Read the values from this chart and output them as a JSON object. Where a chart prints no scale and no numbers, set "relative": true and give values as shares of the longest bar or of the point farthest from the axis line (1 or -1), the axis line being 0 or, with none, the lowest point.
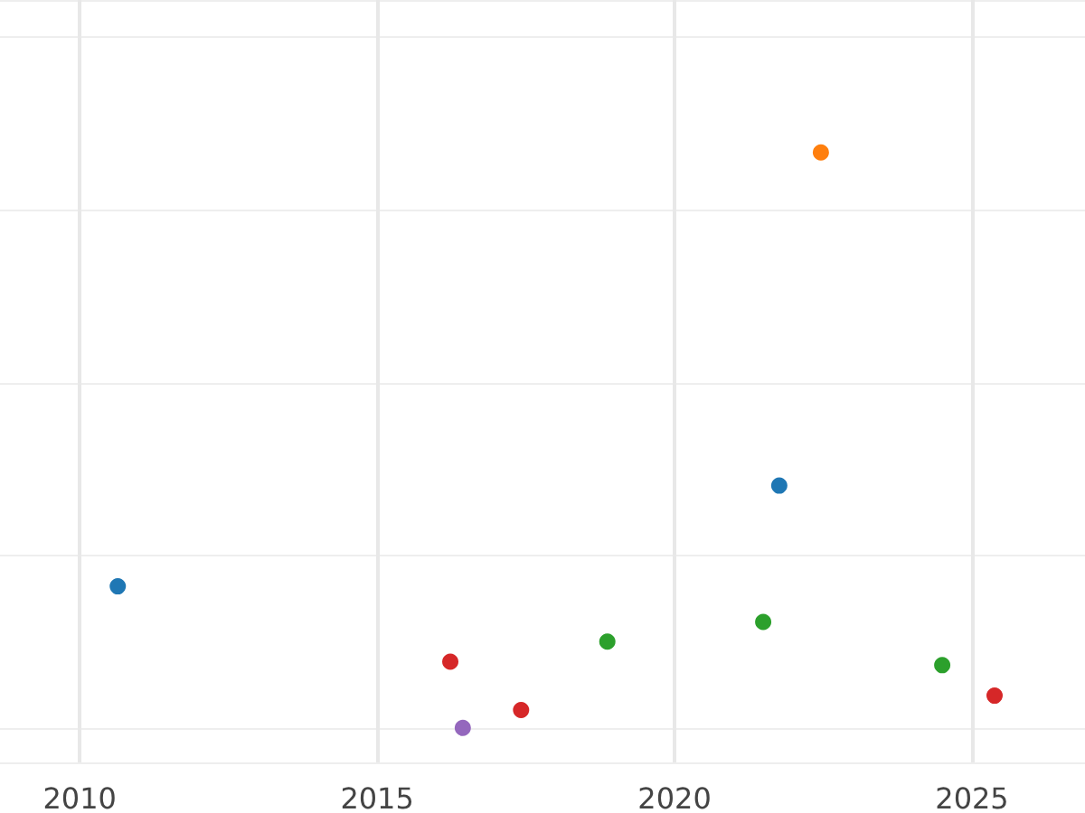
{
  "chart_data": {
    "type": "scatter",
    "relative": true,
    "xlim": [
      2008.66,
      2026.9
    ],
    "xticks": [
      2010,
      2015,
      2020,
      2025
    ],
    "grid": true,
    "marker": "circle",
    "series": [
      {
        "color": "#1f77b4",
        "x": [
          2010.64,
          2021.76
        ],
        "values": [
          0.246,
          0.421
        ]
      },
      {
        "color": "#ff7f0e",
        "x": [
          2022.46
        ],
        "values": [
          1.0
        ]
      },
      {
        "color": "#2ca02c",
        "x": [
          2018.87,
          2021.49,
          2024.5
        ],
        "values": [
          0.15,
          0.184,
          0.109
        ]
      },
      {
        "color": "#d62728",
        "x": [
          2016.23,
          2017.42,
          2025.38
        ],
        "values": [
          0.115,
          0.031,
          0.056
        ]
      },
      {
        "color": "#9467bd",
        "x": [
          2016.44
        ],
        "values": [
          0
        ]
      }
    ]
  }
}
